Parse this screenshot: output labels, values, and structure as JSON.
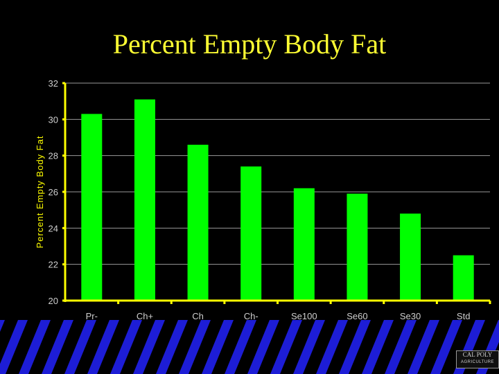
{
  "slide": {
    "title": "Percent Empty Body Fat",
    "logo_line1": "CAL POLY",
    "logo_line2": "AGRICULTURE"
  },
  "colors": {
    "background": "#000000",
    "title": "#ffff33",
    "bar": "#00ff00",
    "axis": "#ffff00",
    "band_stripe": "#1d1dd6"
  },
  "chart_data": {
    "type": "bar",
    "title": "",
    "xlabel": "",
    "ylabel": "Percent Empty Body Fat",
    "categories": [
      "Pr-",
      "Ch+",
      "Ch",
      "Ch-",
      "Se100",
      "Se60",
      "Se30",
      "Std"
    ],
    "values": [
      30.3,
      31.1,
      28.6,
      27.4,
      26.2,
      25.9,
      24.8,
      22.5
    ],
    "ylim": [
      20,
      32
    ],
    "yticks": [
      20,
      22,
      24,
      26,
      28,
      30,
      32
    ],
    "grid": true,
    "legend": "none"
  }
}
